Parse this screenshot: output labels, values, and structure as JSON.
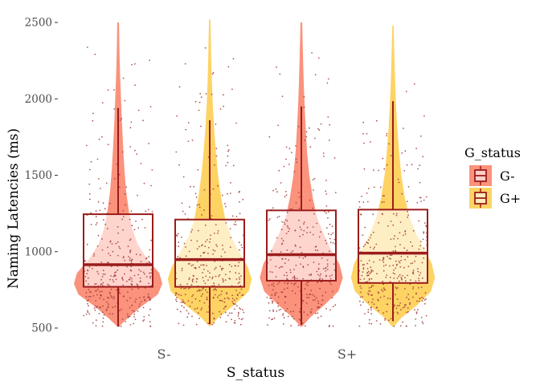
{
  "chart_data": {
    "type": "violin",
    "xlabel": "S_status",
    "ylabel": "Naming Latencies (ms)",
    "categories": [
      "S-",
      "S+"
    ],
    "ylim": [
      450,
      2520
    ],
    "yticks": [
      500,
      1000,
      1500,
      2000,
      2500
    ],
    "grid": false,
    "legend": {
      "title": "G_status",
      "placement": "right",
      "entries": [
        "G-",
        "G+"
      ]
    },
    "colors": {
      "G-": "#f9836a",
      "G+": "#fdcd4f",
      "box_stroke": "#9b1c1c",
      "points": "#a23b3b"
    },
    "series": [
      {
        "category": "S-",
        "group": "G-",
        "box": {
          "min": 510,
          "q1": 770,
          "median": 915,
          "q3": 1245,
          "max": 1940
        },
        "range": [
          510,
          2500
        ],
        "density": [
          [
            510,
            0.02
          ],
          [
            560,
            0.2
          ],
          [
            640,
            0.52
          ],
          [
            720,
            0.9
          ],
          [
            790,
            1.0
          ],
          [
            860,
            0.93
          ],
          [
            950,
            0.66
          ],
          [
            1050,
            0.44
          ],
          [
            1150,
            0.32
          ],
          [
            1250,
            0.25
          ],
          [
            1400,
            0.18
          ],
          [
            1550,
            0.14
          ],
          [
            1700,
            0.11
          ],
          [
            1850,
            0.085
          ],
          [
            2000,
            0.065
          ],
          [
            2150,
            0.045
          ],
          [
            2300,
            0.03
          ],
          [
            2500,
            0.02
          ]
        ]
      },
      {
        "category": "S-",
        "group": "G+",
        "box": {
          "min": 525,
          "q1": 770,
          "median": 948,
          "q3": 1210,
          "max": 1860
        },
        "range": [
          515,
          2520
        ],
        "density": [
          [
            515,
            0.02
          ],
          [
            570,
            0.2
          ],
          [
            650,
            0.55
          ],
          [
            740,
            0.88
          ],
          [
            820,
            0.95
          ],
          [
            900,
            0.86
          ],
          [
            1000,
            0.66
          ],
          [
            1100,
            0.48
          ],
          [
            1200,
            0.36
          ],
          [
            1350,
            0.26
          ],
          [
            1500,
            0.19
          ],
          [
            1650,
            0.14
          ],
          [
            1800,
            0.1
          ],
          [
            1950,
            0.07
          ],
          [
            2100,
            0.05
          ],
          [
            2250,
            0.035
          ],
          [
            2400,
            0.025
          ],
          [
            2520,
            0.015
          ]
        ]
      },
      {
        "category": "S+",
        "group": "G-",
        "box": {
          "min": 520,
          "q1": 810,
          "median": 980,
          "q3": 1270,
          "max": 1950
        },
        "range": [
          510,
          2500
        ],
        "density": [
          [
            510,
            0.02
          ],
          [
            570,
            0.2
          ],
          [
            650,
            0.52
          ],
          [
            740,
            0.84
          ],
          [
            830,
            0.94
          ],
          [
            920,
            0.86
          ],
          [
            1020,
            0.66
          ],
          [
            1120,
            0.5
          ],
          [
            1220,
            0.36
          ],
          [
            1350,
            0.26
          ],
          [
            1500,
            0.18
          ],
          [
            1650,
            0.13
          ],
          [
            1800,
            0.1
          ],
          [
            1950,
            0.075
          ],
          [
            2100,
            0.055
          ],
          [
            2250,
            0.04
          ],
          [
            2400,
            0.028
          ],
          [
            2500,
            0.02
          ]
        ]
      },
      {
        "category": "S+",
        "group": "G+",
        "box": {
          "min": 545,
          "q1": 795,
          "median": 990,
          "q3": 1275,
          "max": 1985
        },
        "range": [
          510,
          2480
        ],
        "density": [
          [
            510,
            0.02
          ],
          [
            570,
            0.2
          ],
          [
            650,
            0.55
          ],
          [
            740,
            0.86
          ],
          [
            830,
            0.95
          ],
          [
            920,
            0.88
          ],
          [
            1020,
            0.7
          ],
          [
            1120,
            0.52
          ],
          [
            1220,
            0.38
          ],
          [
            1350,
            0.27
          ],
          [
            1500,
            0.19
          ],
          [
            1650,
            0.14
          ],
          [
            1800,
            0.1
          ],
          [
            1950,
            0.07
          ],
          [
            2100,
            0.05
          ],
          [
            2250,
            0.035
          ],
          [
            2400,
            0.022
          ],
          [
            2480,
            0.015
          ]
        ]
      }
    ]
  }
}
